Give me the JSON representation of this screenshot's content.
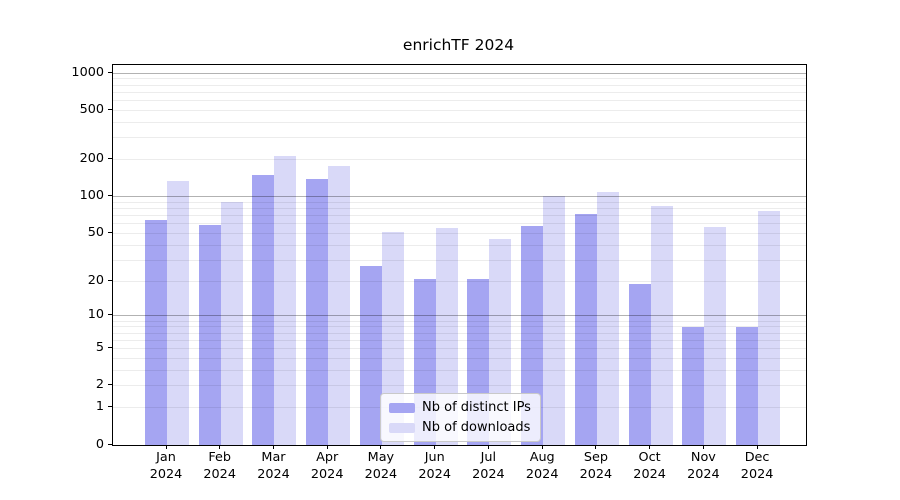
{
  "title": "enrichTF 2024",
  "colors": {
    "distinct_ips": "#a5a5f2",
    "downloads": "#d9d9f8",
    "grid_minor": "rgba(0,0,0,0.075)",
    "grid_major": "rgba(0,0,0,0.30)",
    "axis": "#000000",
    "legend_border": "#c9c9c9"
  },
  "chart_data": {
    "type": "bar",
    "title": "enrichTF 2024",
    "categories": [
      "Jan",
      "Feb",
      "Mar",
      "Apr",
      "May",
      "Jun",
      "Jul",
      "Aug",
      "Sep",
      "Oct",
      "Nov",
      "Dec"
    ],
    "year_label": "2024",
    "series": [
      {
        "name": "Nb of distinct IPs",
        "color_key": "distinct_ips",
        "values": [
          64,
          59,
          150,
          138,
          27,
          21,
          21,
          57,
          72,
          19,
          8,
          8
        ]
      },
      {
        "name": "Nb of downloads",
        "color_key": "downloads",
        "values": [
          135,
          90,
          213,
          177,
          51,
          55,
          45,
          101,
          108,
          84,
          56,
          76
        ]
      }
    ],
    "y_axis": {
      "scale": "log1p",
      "tick_values": [
        0,
        1,
        2,
        5,
        10,
        20,
        50,
        100,
        200,
        500,
        1000
      ],
      "range": [
        0,
        1000
      ]
    },
    "grid": {
      "major_values": [
        10,
        100,
        1000
      ],
      "minor_values": [
        1,
        2,
        3,
        4,
        5,
        6,
        7,
        8,
        9,
        20,
        30,
        40,
        50,
        60,
        70,
        80,
        90,
        200,
        300,
        400,
        500,
        600,
        700,
        800,
        900
      ]
    },
    "legend": {
      "position": "lower center"
    }
  }
}
